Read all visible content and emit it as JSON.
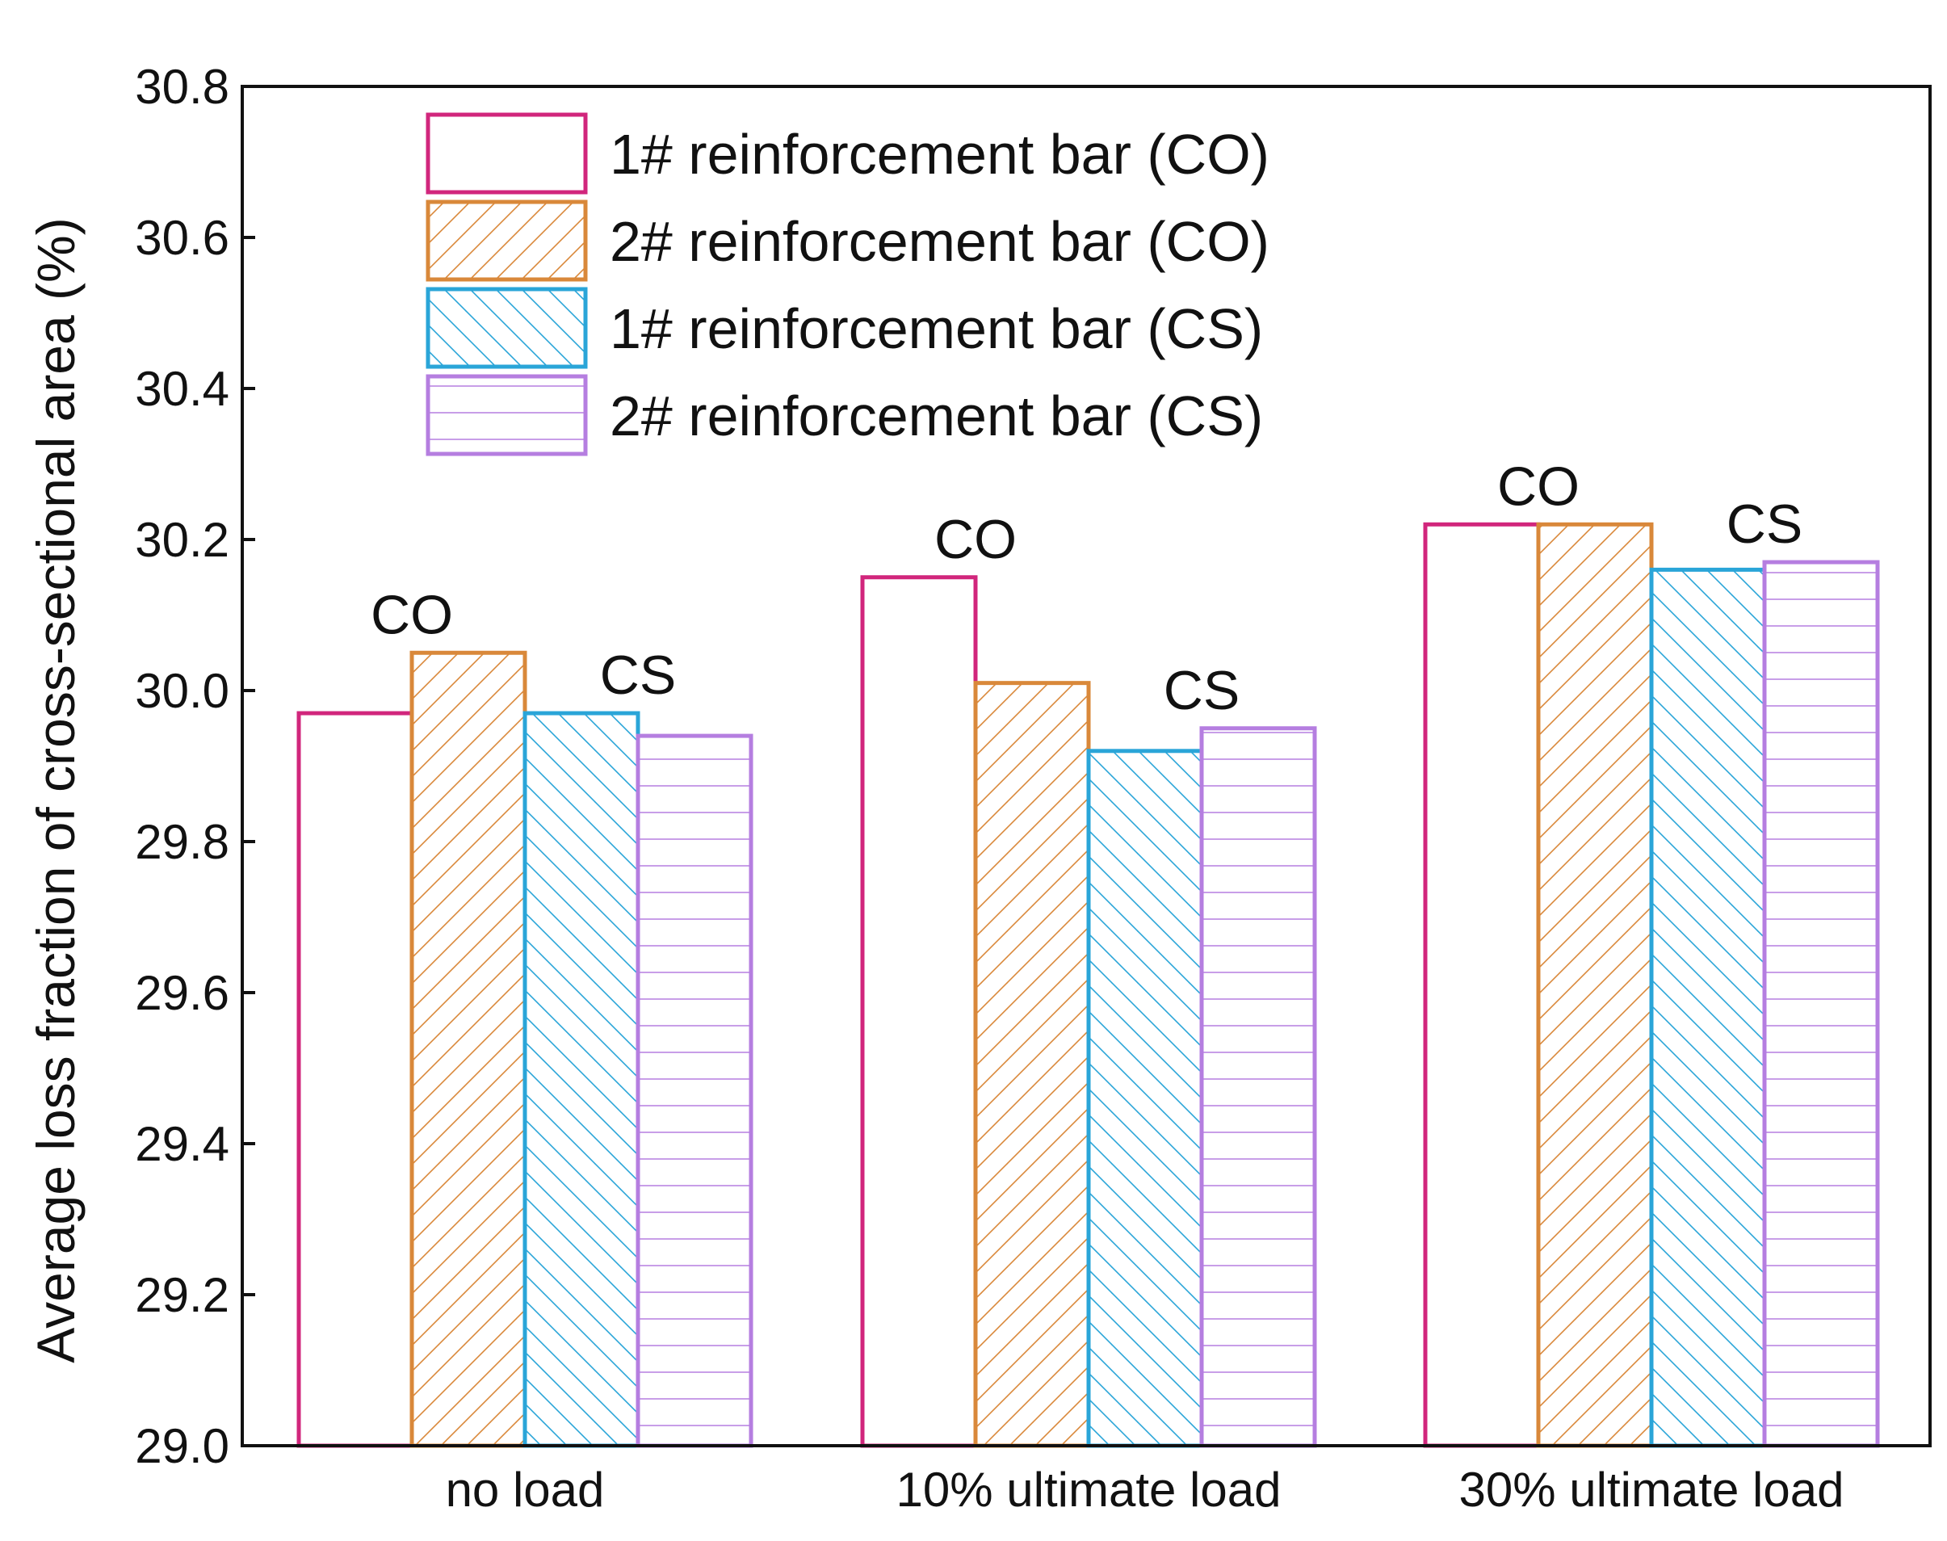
{
  "chart_data": {
    "type": "bar",
    "title": "",
    "xlabel": "",
    "ylabel": "Average loss fraction of cross-sectional area (%)",
    "ylim": [
      29.0,
      30.8
    ],
    "yticks": [
      29.0,
      29.2,
      29.4,
      29.6,
      29.8,
      30.0,
      30.2,
      30.4,
      30.6,
      30.8
    ],
    "ytick_labels": [
      "29.0",
      "29.2",
      "29.4",
      "29.6",
      "29.8",
      "30.0",
      "30.2",
      "30.4",
      "30.6",
      "30.8"
    ],
    "categories": [
      "no load",
      "10% ultimate load",
      "30% ultimate load"
    ],
    "series": [
      {
        "name": "1# reinforcement bar (CO)",
        "values": [
          29.97,
          30.15,
          30.22
        ],
        "color": "#d1267c",
        "pattern": "none"
      },
      {
        "name": "2# reinforcement bar (CO)",
        "values": [
          30.05,
          30.01,
          30.22
        ],
        "color": "#d9883a",
        "pattern": "diag-up"
      },
      {
        "name": "1# reinforcement bar (CS)",
        "values": [
          29.97,
          29.92,
          30.16
        ],
        "color": "#2aa5d8",
        "pattern": "diag-down"
      },
      {
        "name": "2# reinforcement bar (CS)",
        "values": [
          29.94,
          29.95,
          30.17
        ],
        "color": "#b57ee0",
        "pattern": "horizontal"
      }
    ],
    "annotations": [
      {
        "text": "CO",
        "category": 0,
        "group": "CO",
        "value": 30.05
      },
      {
        "text": "CS",
        "category": 0,
        "group": "CS",
        "value": 29.97
      },
      {
        "text": "CO",
        "category": 1,
        "group": "CO",
        "value": 30.15
      },
      {
        "text": "CS",
        "category": 1,
        "group": "CS",
        "value": 29.95
      },
      {
        "text": "CO",
        "category": 2,
        "group": "CO",
        "value": 30.22
      },
      {
        "text": "CS",
        "category": 2,
        "group": "CS",
        "value": 30.17
      }
    ],
    "legend_position": "top-left",
    "grid": false
  }
}
